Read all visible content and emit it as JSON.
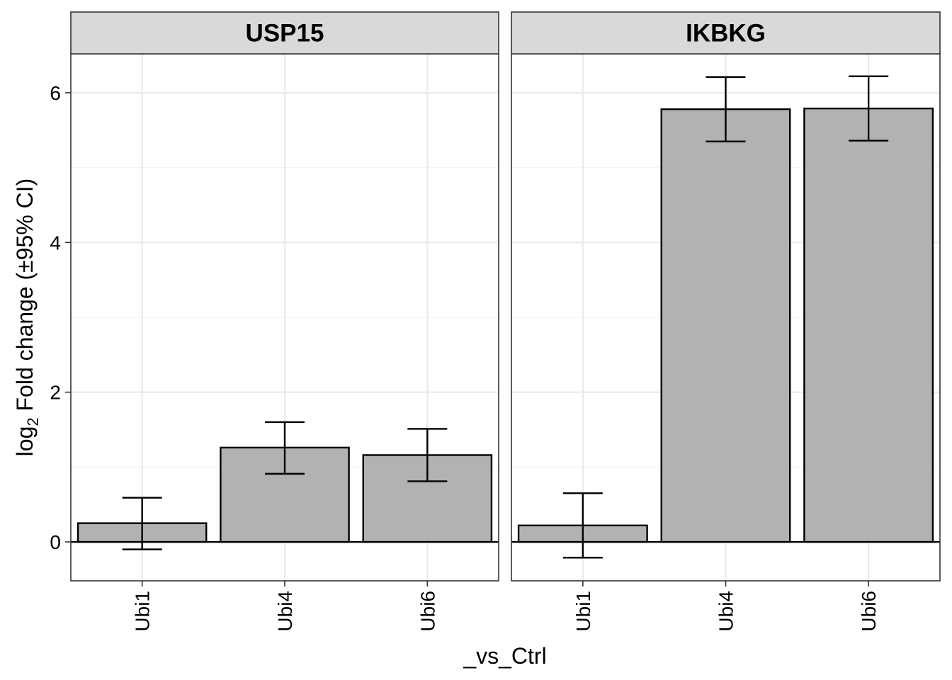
{
  "chart_data": {
    "type": "bar",
    "facets": [
      {
        "title": "USP15",
        "categories": [
          "Ubi1",
          "Ubi4",
          "Ubi6"
        ],
        "values": [
          0.25,
          1.26,
          1.16
        ],
        "ci_lower": [
          -0.1,
          0.91,
          0.81
        ],
        "ci_upper": [
          0.59,
          1.6,
          1.51
        ]
      },
      {
        "title": "IKBKG",
        "categories": [
          "Ubi1",
          "Ubi4",
          "Ubi6"
        ],
        "values": [
          0.22,
          5.78,
          5.79
        ],
        "ci_lower": [
          -0.21,
          5.35,
          5.36
        ],
        "ci_upper": [
          0.65,
          6.21,
          6.22
        ]
      }
    ],
    "xlabel": "_vs_Ctrl",
    "ylabel": {
      "prefix": "log",
      "subscript": "2",
      "suffix": " Fold change (±95% CI)"
    },
    "ylim": [
      -0.52,
      6.52
    ],
    "yticks": [
      0,
      2,
      4,
      6
    ],
    "ytick_labels": [
      "0",
      "2",
      "4",
      "6"
    ],
    "reference_line": 0,
    "grid": true,
    "legend": "none",
    "colors": {
      "bar_fill": "#b2b2b2",
      "bar_stroke": "#000000",
      "strip_fill": "#d9d9d9",
      "grid_major": "#ebebeb",
      "grid_minor": "#f3f3f3",
      "panel_border": "#333333"
    }
  }
}
